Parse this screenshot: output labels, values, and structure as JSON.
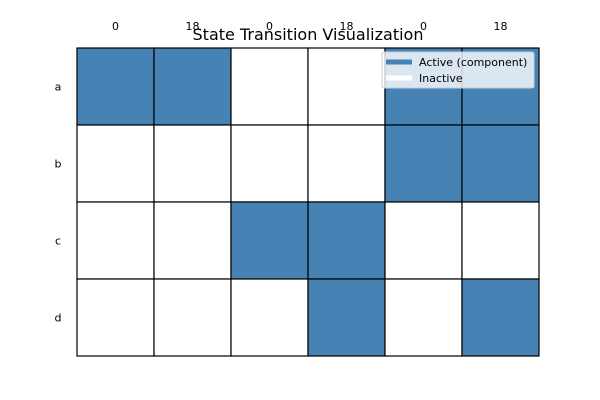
{
  "chart_data": {
    "type": "heatmap",
    "title": "State Transition Visualization",
    "rows": [
      "a",
      "b",
      "c",
      "d"
    ],
    "columns": [
      "0",
      "18",
      "0",
      "18",
      "0",
      "18"
    ],
    "values": [
      [
        1,
        1,
        0,
        0,
        1,
        1
      ],
      [
        0,
        0,
        0,
        0,
        1,
        1
      ],
      [
        0,
        0,
        1,
        1,
        0,
        0
      ],
      [
        0,
        0,
        0,
        1,
        0,
        1
      ]
    ],
    "legend": {
      "placement": "top-right",
      "entries": [
        {
          "label": "Active (component)",
          "color": "#4682b4"
        },
        {
          "label": "Inactive",
          "color": "#ffffff"
        }
      ]
    },
    "colors": {
      "active": "#4682b4",
      "inactive": "#ffffff",
      "grid": "#000000"
    }
  }
}
